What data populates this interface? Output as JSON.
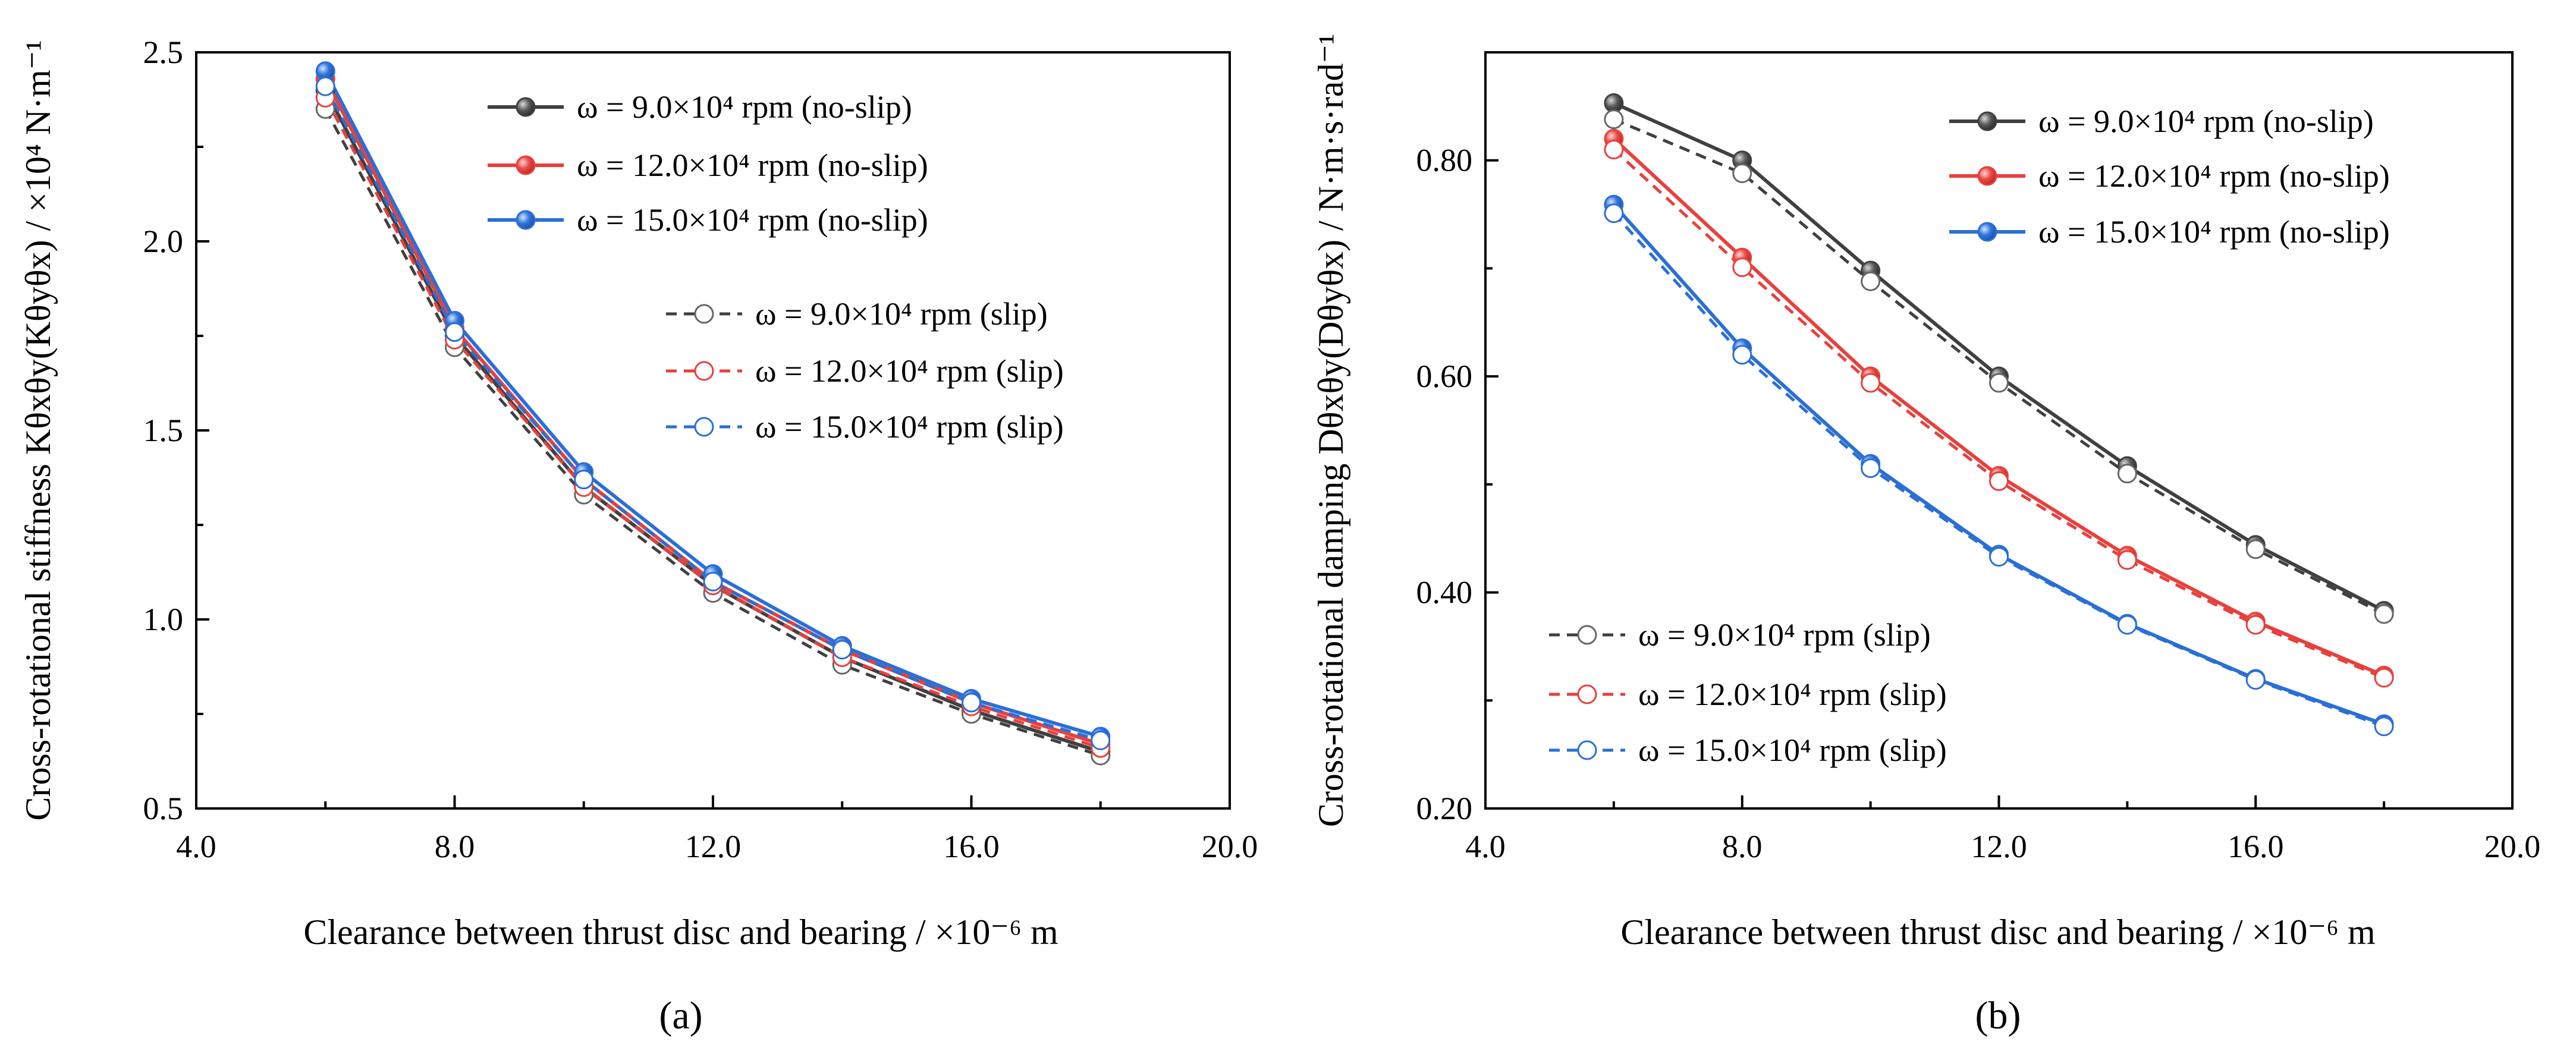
{
  "chart_data": [
    {
      "type": "line",
      "panel_label": "(a)",
      "xlabel": "Clearance between thrust disc and bearing / ×10⁻⁶ m",
      "ylabel": "Cross-rotational stiffness Kθxθy(Kθyθx) / ×10⁴ N·m⁻¹",
      "xlim": [
        4.0,
        20.0
      ],
      "ylim": [
        0.5,
        2.5
      ],
      "xticks": [
        "4.0",
        "8.0",
        "12.0",
        "16.0",
        "20.0"
      ],
      "yticks": [
        "0.5",
        "1.0",
        "1.5",
        "2.0",
        "2.5"
      ],
      "x": [
        6,
        8,
        10,
        12,
        14,
        16,
        18
      ],
      "legend_placement": "top-right",
      "series": [
        {
          "name": "ω = 9.0×10⁴ rpm (no-slip)",
          "color": "#404040",
          "style": "solid",
          "marker": "filled",
          "values": [
            2.4,
            1.75,
            1.35,
            1.09,
            0.9,
            0.76,
            0.65
          ]
        },
        {
          "name": "ω = 12.0×10⁴ rpm (no-slip)",
          "color": "#e8403c",
          "style": "solid",
          "marker": "filled",
          "values": [
            2.43,
            1.77,
            1.37,
            1.1,
            0.92,
            0.78,
            0.67
          ]
        },
        {
          "name": "ω = 15.0×10⁴ rpm (no-slip)",
          "color": "#2a6fd6",
          "style": "solid",
          "marker": "filled",
          "values": [
            2.45,
            1.79,
            1.39,
            1.12,
            0.93,
            0.79,
            0.69
          ]
        },
        {
          "name": "ω = 9.0×10⁴ rpm (slip)",
          "color": "#404040",
          "style": "dashed",
          "marker": "open",
          "values": [
            2.35,
            1.72,
            1.33,
            1.07,
            0.88,
            0.75,
            0.64
          ]
        },
        {
          "name": "ω = 12.0×10⁴ rpm (slip)",
          "color": "#e8403c",
          "style": "dashed",
          "marker": "open",
          "values": [
            2.38,
            1.74,
            1.35,
            1.09,
            0.9,
            0.77,
            0.66
          ]
        },
        {
          "name": "ω = 15.0×10⁴ rpm (slip)",
          "color": "#2a6fd6",
          "style": "dashed",
          "marker": "open",
          "values": [
            2.41,
            1.76,
            1.37,
            1.1,
            0.92,
            0.78,
            0.68
          ]
        }
      ]
    },
    {
      "type": "line",
      "panel_label": "(b)",
      "xlabel": "Clearance between thrust disc and bearing / ×10⁻⁶ m",
      "ylabel": "Cross-rotational damping Dθxθy(Dθyθx) / N·m·s·rad⁻¹",
      "xlim": [
        4.0,
        20.0
      ],
      "ylim": [
        0.2,
        0.9
      ],
      "xticks": [
        "4.0",
        "8.0",
        "12.0",
        "16.0",
        "20.0"
      ],
      "yticks": [
        "0.20",
        "0.40",
        "0.60",
        "0.80"
      ],
      "x": [
        6,
        8,
        10,
        12,
        14,
        16,
        18
      ],
      "legend_placement": "top-right / bottom-left",
      "series": [
        {
          "name": "ω = 9.0×10⁴ rpm (no-slip)",
          "color": "#404040",
          "style": "solid",
          "marker": "filled",
          "values": [
            0.853,
            0.8,
            0.698,
            0.6,
            0.517,
            0.444,
            0.383
          ]
        },
        {
          "name": "ω = 12.0×10⁴ rpm (no-slip)",
          "color": "#e8403c",
          "style": "solid",
          "marker": "filled",
          "values": [
            0.82,
            0.71,
            0.6,
            0.508,
            0.434,
            0.373,
            0.323
          ]
        },
        {
          "name": "ω = 15.0×10⁴ rpm (no-slip)",
          "color": "#2a6fd6",
          "style": "solid",
          "marker": "filled",
          "values": [
            0.759,
            0.626,
            0.519,
            0.435,
            0.371,
            0.32,
            0.278
          ]
        },
        {
          "name": "ω = 9.0×10⁴ rpm (slip)",
          "color": "#404040",
          "style": "dashed",
          "marker": "open",
          "values": [
            0.838,
            0.788,
            0.688,
            0.594,
            0.51,
            0.44,
            0.38
          ]
        },
        {
          "name": "ω = 12.0×10⁴ rpm (slip)",
          "color": "#e8403c",
          "style": "dashed",
          "marker": "open",
          "values": [
            0.81,
            0.701,
            0.594,
            0.503,
            0.43,
            0.37,
            0.321
          ]
        },
        {
          "name": "ω = 15.0×10⁴ rpm (slip)",
          "color": "#2a6fd6",
          "style": "dashed",
          "marker": "open",
          "values": [
            0.751,
            0.62,
            0.515,
            0.433,
            0.37,
            0.319,
            0.276
          ]
        }
      ]
    }
  ]
}
